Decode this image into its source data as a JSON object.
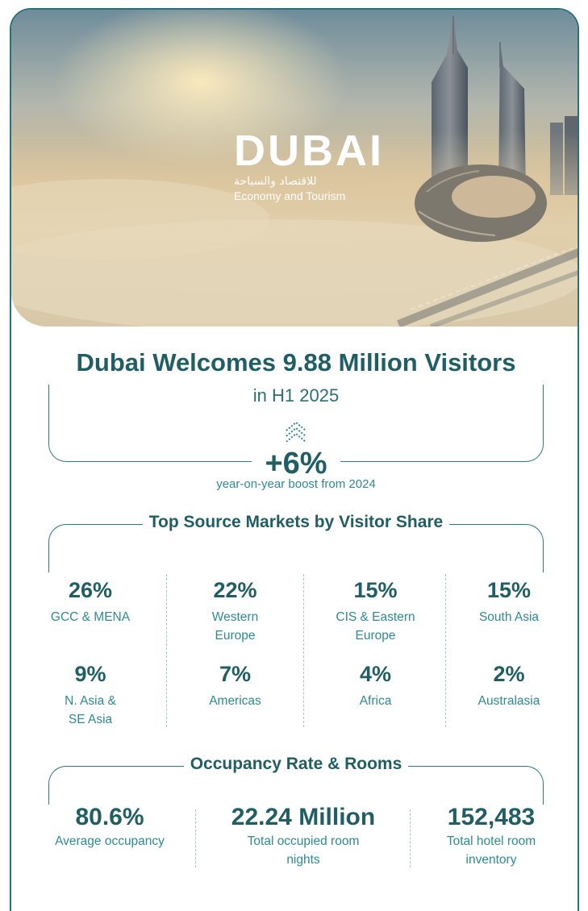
{
  "hero": {
    "logo_word": "DUBAI",
    "logo_arabic": "للاقتصاد والسياحة",
    "logo_english": "Economy and Tourism"
  },
  "headline": {
    "title": "Dubai Welcomes  9.88 Million Visitors",
    "subtitle": "in H1 2025",
    "growth_value": "+6%",
    "growth_label": "year-on-year boost from 2024"
  },
  "markets": {
    "title": "Top Source Markets by Visitor Share",
    "items": [
      {
        "value": "26%",
        "label": "GCC & MENA"
      },
      {
        "value": "22%",
        "label": "Western\nEurope"
      },
      {
        "value": "15%",
        "label": "CIS & Eastern\nEurope"
      },
      {
        "value": "15%",
        "label": "South Asia"
      },
      {
        "value": "9%",
        "label": "N. Asia &\nSE Asia"
      },
      {
        "value": "7%",
        "label": "Americas"
      },
      {
        "value": "4%",
        "label": "Africa"
      },
      {
        "value": "2%",
        "label": "Australasia"
      }
    ]
  },
  "occupancy": {
    "title": "Occupancy Rate & Rooms",
    "items": [
      {
        "value": "80.6%",
        "label": "Average occupancy"
      },
      {
        "value": "22.24 Million",
        "label": "Total occupied room\nnights"
      },
      {
        "value": "152,483",
        "label": "Total hotel room\ninventory"
      }
    ]
  },
  "colors": {
    "primary": "#1f5e65",
    "accent": "#2c8b93",
    "border": "#2c6f76"
  }
}
